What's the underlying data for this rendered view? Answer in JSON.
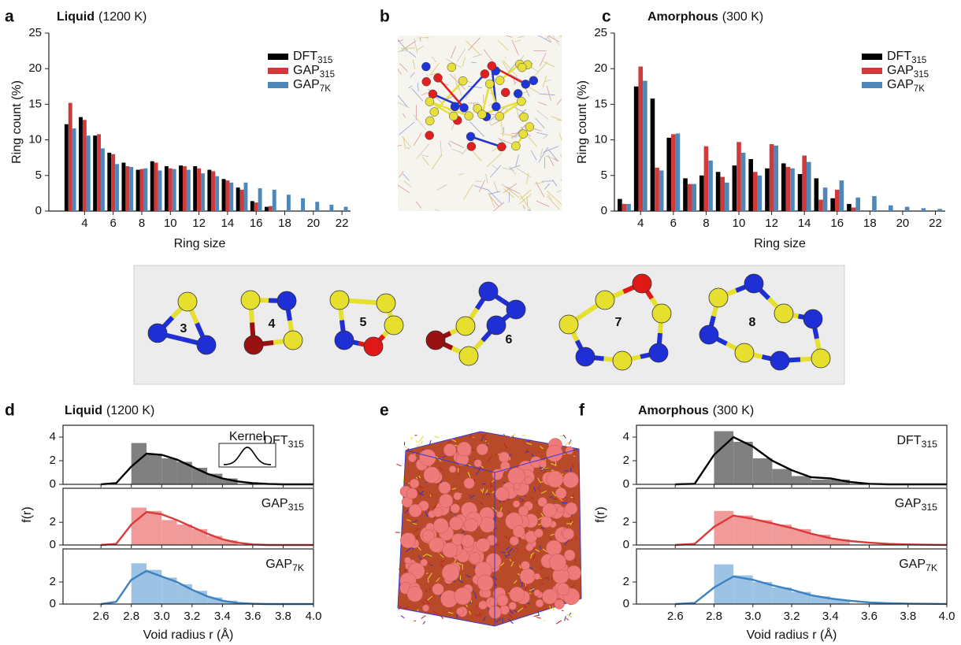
{
  "chart_data": [
    {
      "type": "bar",
      "panel": "a",
      "title": "Liquid",
      "condition": "(1200 K)",
      "xlabel": "Ring size",
      "ylabel": "Ring count (%)",
      "x": [
        3,
        4,
        5,
        6,
        7,
        8,
        9,
        10,
        11,
        12,
        13,
        14,
        15,
        16,
        17,
        18,
        19,
        20,
        21,
        22
      ],
      "xlim": [
        1.5,
        22.6
      ],
      "xticks": [
        4,
        6,
        8,
        10,
        12,
        14,
        16,
        18,
        20,
        22
      ],
      "ylim": [
        0,
        25
      ],
      "yticks": [
        0,
        5,
        10,
        15,
        20,
        25
      ],
      "legend": "top-right",
      "series": [
        {
          "name": "DFT",
          "sub": "315",
          "color": "#000000",
          "values": [
            12.2,
            13.2,
            10.6,
            8.2,
            6.8,
            5.8,
            7.0,
            6.3,
            6.4,
            6.3,
            5.8,
            4.5,
            3.3,
            1.4,
            0.6,
            0,
            0,
            0,
            0,
            0
          ]
        },
        {
          "name": "GAP",
          "sub": "315",
          "color": "#d03a3a",
          "values": [
            15.2,
            12.8,
            10.8,
            8.0,
            6.3,
            5.9,
            6.8,
            6.0,
            6.3,
            6.0,
            5.6,
            4.3,
            3.0,
            1.2,
            0.7,
            0,
            0,
            0,
            0,
            0
          ]
        },
        {
          "name": "GAP",
          "sub": "7K",
          "color": "#4f87b8",
          "values": [
            11.6,
            10.6,
            8.8,
            6.6,
            6.2,
            6.0,
            5.7,
            5.9,
            5.8,
            5.3,
            4.9,
            4.0,
            4.0,
            3.2,
            3.0,
            2.3,
            1.8,
            1.3,
            0.9,
            0.6
          ]
        }
      ]
    },
    {
      "type": "bar",
      "panel": "c",
      "title": "Amorphous",
      "condition": "(300 K)",
      "xlabel": "Ring size",
      "ylabel": "Ring count (%)",
      "x": [
        3,
        4,
        5,
        6,
        7,
        8,
        9,
        10,
        11,
        12,
        13,
        14,
        15,
        16,
        17,
        18,
        19,
        20,
        21,
        22
      ],
      "xlim": [
        2.4,
        22.6
      ],
      "xticks": [
        4,
        6,
        8,
        10,
        12,
        14,
        16,
        18,
        20,
        22
      ],
      "ylim": [
        0,
        25
      ],
      "yticks": [
        0,
        5,
        10,
        15,
        20,
        25
      ],
      "legend": "top-right",
      "series": [
        {
          "name": "DFT",
          "sub": "315",
          "color": "#000000",
          "values": [
            1.7,
            17.5,
            15.8,
            10.3,
            4.6,
            5.0,
            5.5,
            6.4,
            7.3,
            6.0,
            6.7,
            5.2,
            4.6,
            1.8,
            1.0,
            0,
            0,
            0,
            0,
            0
          ]
        },
        {
          "name": "GAP",
          "sub": "315",
          "color": "#d03a3a",
          "values": [
            1.0,
            20.3,
            6.1,
            10.8,
            3.8,
            9.1,
            4.8,
            9.7,
            5.5,
            9.4,
            6.2,
            7.8,
            1.6,
            3.0,
            0.5,
            0,
            0,
            0,
            0,
            0
          ]
        },
        {
          "name": "GAP",
          "sub": "7K",
          "color": "#4f87b8",
          "values": [
            1.0,
            18.3,
            5.7,
            10.9,
            3.8,
            7.1,
            4.0,
            8.2,
            5.0,
            9.2,
            6.0,
            6.9,
            3.3,
            4.3,
            1.9,
            2.1,
            0.8,
            0.6,
            0.4,
            0.3
          ]
        }
      ]
    },
    {
      "type": "histogram",
      "panel": "d",
      "title": "Liquid",
      "condition": "(1200 K)",
      "xlabel": "Void radius r (Å)",
      "ylabel": "f(r)",
      "kernel_label": "Kernel",
      "xlim": [
        2.35,
        4.0
      ],
      "xticks": [
        2.6,
        2.8,
        {
          "value": 3,
          "label": "3.0"
        },
        3.2,
        3.4,
        3.6,
        3.8,
        {
          "value": 4,
          "label": "4.0"
        }
      ],
      "ylim": [
        0,
        5
      ],
      "subplots": [
        {
          "name": "DFT",
          "sub": "315",
          "color": "#000000",
          "hist_color": "#808080",
          "yticks": [
            0,
            2,
            4
          ],
          "bins": [
            2.8,
            2.9,
            3.0,
            3.1,
            3.2,
            3.3,
            3.4,
            3.5
          ],
          "counts": [
            3.5,
            2.5,
            2.2,
            1.9,
            1.4,
            0.9,
            0.5
          ],
          "kde": {
            "x": [
              2.6,
              2.7,
              2.8,
              2.9,
              3.0,
              3.1,
              3.2,
              3.3,
              3.4,
              3.5,
              3.6,
              3.7,
              3.8,
              3.9,
              4.0
            ],
            "y": [
              0,
              0.1,
              1.5,
              2.6,
              2.5,
              2.1,
              1.5,
              0.9,
              0.5,
              0.25,
              0.1,
              0.03,
              0,
              0,
              0
            ]
          }
        },
        {
          "name": "GAP",
          "sub": "315",
          "color": "#d93a3a",
          "hist_color": "#f09a9a",
          "yticks": [
            0,
            2
          ],
          "bins": [
            2.8,
            2.9,
            3.0,
            3.1,
            3.2,
            3.3,
            3.4,
            3.5
          ],
          "counts": [
            3.3,
            3.0,
            2.2,
            1.8,
            1.4,
            0.8,
            0.4
          ],
          "kde": {
            "x": [
              2.6,
              2.7,
              2.8,
              2.9,
              3.0,
              3.1,
              3.2,
              3.3,
              3.4,
              3.5,
              3.6,
              3.7,
              3.8,
              3.9,
              4.0
            ],
            "y": [
              0,
              0.1,
              1.8,
              2.9,
              2.7,
              2.2,
              1.6,
              1.0,
              0.5,
              0.2,
              0.05,
              0,
              0,
              0,
              0
            ]
          }
        },
        {
          "name": "GAP",
          "sub": "7K",
          "color": "#3d82c0",
          "hist_color": "#9cc3e3",
          "yticks": [
            0,
            2
          ],
          "bins": [
            2.8,
            2.9,
            3.0,
            3.1,
            3.2,
            3.3,
            3.4,
            3.5
          ],
          "counts": [
            3.7,
            3.1,
            2.4,
            1.8,
            1.2,
            0.6,
            0.3
          ],
          "kde": {
            "x": [
              2.6,
              2.7,
              2.8,
              2.9,
              3.0,
              3.1,
              3.2,
              3.3,
              3.4,
              3.5,
              3.6,
              3.7,
              3.8,
              3.9,
              4.0
            ],
            "y": [
              0,
              0.2,
              2.2,
              3.0,
              2.5,
              2.0,
              1.3,
              0.7,
              0.3,
              0.1,
              0.03,
              0,
              0,
              0,
              0
            ]
          }
        }
      ]
    },
    {
      "type": "histogram",
      "panel": "f",
      "title": "Amorphous",
      "condition": "(300 K)",
      "xlabel": "Void radius r (Å)",
      "ylabel": "f(r)",
      "xlim": [
        2.4,
        4.0
      ],
      "xticks": [
        2.6,
        2.8,
        {
          "value": 3,
          "label": "3.0"
        },
        3.2,
        3.4,
        3.6,
        3.8,
        {
          "value": 4,
          "label": "4.0"
        }
      ],
      "ylim": [
        0,
        5
      ],
      "subplots": [
        {
          "name": "DFT",
          "sub": "315",
          "color": "#000000",
          "hist_color": "#808080",
          "yticks": [
            0,
            2,
            4
          ],
          "bins": [
            2.8,
            2.9,
            3.0,
            3.1,
            3.2,
            3.3,
            3.4,
            3.5
          ],
          "counts": [
            4.5,
            3.6,
            2.2,
            1.3,
            0.7,
            0.4,
            0.4
          ],
          "kde": {
            "x": [
              2.6,
              2.7,
              2.8,
              2.9,
              3.0,
              3.1,
              3.2,
              3.3,
              3.4,
              3.5,
              3.6,
              3.7,
              3.8,
              3.9,
              4.0
            ],
            "y": [
              0,
              0.05,
              2.5,
              4.0,
              3.2,
              2.0,
              1.2,
              0.6,
              0.5,
              0.2,
              0.05,
              0,
              0,
              0,
              0
            ]
          }
        },
        {
          "name": "GAP",
          "sub": "315",
          "color": "#d93a3a",
          "hist_color": "#f09a9a",
          "yticks": [
            0,
            2
          ],
          "bins": [
            2.8,
            2.9,
            3.0,
            3.1,
            3.2,
            3.3,
            3.4,
            3.5
          ],
          "counts": [
            3.0,
            2.6,
            2.2,
            1.8,
            1.4,
            0.9,
            0.5
          ],
          "kde": {
            "x": [
              2.6,
              2.7,
              2.8,
              2.9,
              3.0,
              3.1,
              3.2,
              3.3,
              3.4,
              3.5,
              3.6,
              3.7,
              3.8,
              3.9,
              4.0
            ],
            "y": [
              0,
              0.1,
              1.6,
              2.6,
              2.3,
              1.9,
              1.5,
              1.0,
              0.6,
              0.35,
              0.2,
              0.1,
              0.05,
              0.02,
              0.01
            ]
          }
        },
        {
          "name": "GAP",
          "sub": "7K",
          "color": "#3d82c0",
          "hist_color": "#9cc3e3",
          "yticks": [
            0,
            2
          ],
          "bins": [
            2.8,
            2.9,
            3.0,
            3.1,
            3.2,
            3.3,
            3.4,
            3.5
          ],
          "counts": [
            3.6,
            2.6,
            2.0,
            1.5,
            1.1,
            0.7,
            0.4
          ],
          "kde": {
            "x": [
              2.6,
              2.7,
              2.8,
              2.9,
              3.0,
              3.1,
              3.2,
              3.3,
              3.4,
              3.5,
              3.6,
              3.7,
              3.8,
              3.9,
              4.0
            ],
            "y": [
              0,
              0.1,
              1.5,
              2.5,
              2.2,
              1.7,
              1.3,
              0.8,
              0.5,
              0.3,
              0.15,
              0.08,
              0.04,
              0.02,
              0.01
            ]
          }
        }
      ]
    }
  ],
  "figure": {
    "panel_b": "b",
    "panel_e": "e",
    "ring_labels": [
      "3",
      "4",
      "5",
      "6",
      "7",
      "8"
    ]
  }
}
